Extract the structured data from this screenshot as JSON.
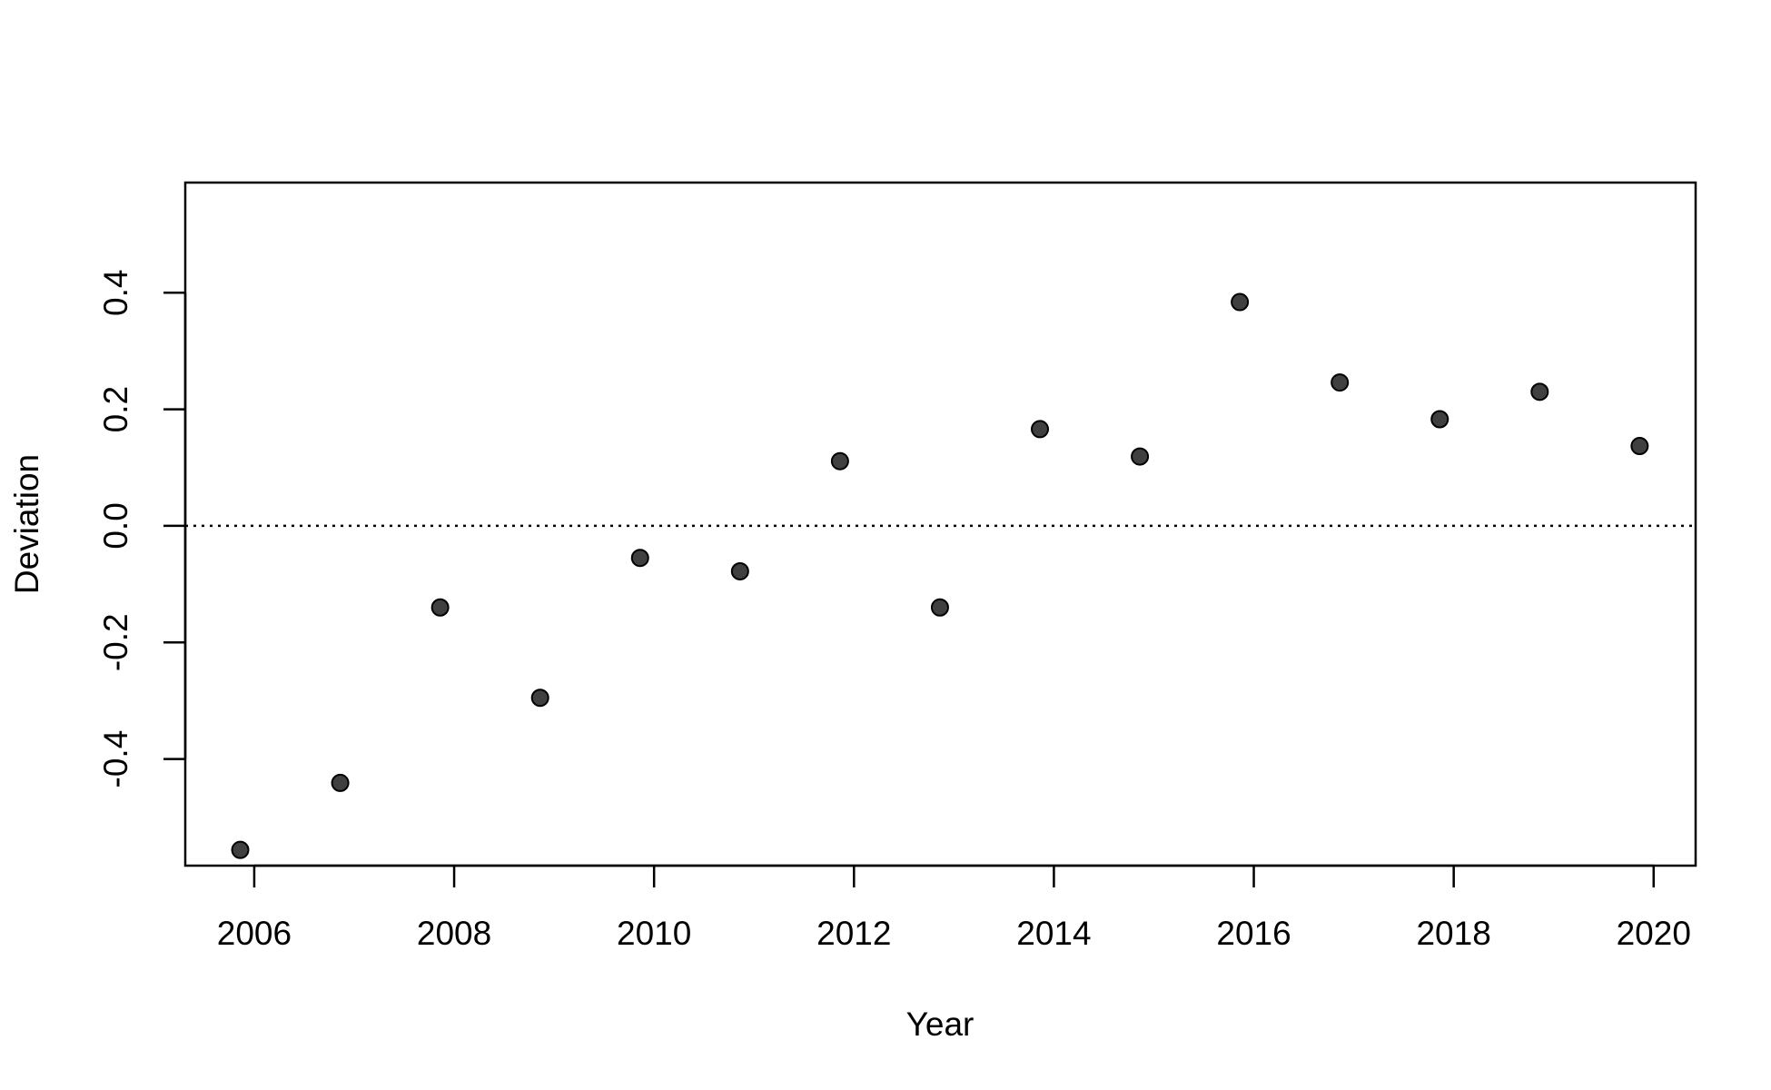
{
  "chart_data": {
    "type": "scatter",
    "x_label": "Year",
    "y_label": "Deviation",
    "x": [
      2005.86,
      2006.86,
      2007.86,
      2008.86,
      2009.86,
      2010.86,
      2011.86,
      2012.86,
      2013.86,
      2014.86,
      2015.86,
      2016.86,
      2017.86,
      2018.86,
      2019.86
    ],
    "values": [
      -0.556,
      -0.441,
      -0.14,
      -0.295,
      -0.055,
      -0.078,
      0.111,
      -0.14,
      0.166,
      0.119,
      0.384,
      0.246,
      0.183,
      0.23,
      0.137
    ],
    "color": "#404040",
    "xlim": [
      2005.31,
      2020.42
    ],
    "xticks": [
      2006,
      2008,
      2010,
      2012,
      2014,
      2016,
      2018,
      2020
    ],
    "ylim": [
      -0.583,
      0.589
    ],
    "yticks": [
      -0.4,
      -0.2,
      {
        "value": 0,
        "label": "0.0"
      },
      0.2,
      0.4
    ],
    "reference_line": 0,
    "grid": false
  }
}
